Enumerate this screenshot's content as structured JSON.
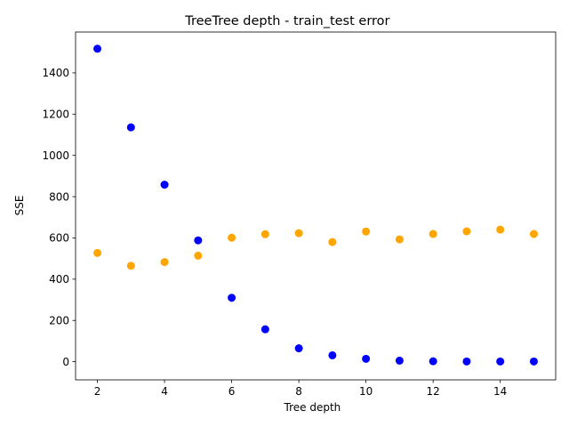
{
  "chart_data": {
    "type": "scatter",
    "title": "TreeTree depth - train_test error",
    "xlabel": "Tree depth",
    "ylabel": "SSE",
    "xlim": [
      1.35,
      15.65
    ],
    "ylim": [
      -88,
      1598
    ],
    "xticks": [
      2,
      4,
      6,
      8,
      10,
      12,
      14
    ],
    "yticks": [
      0,
      200,
      400,
      600,
      800,
      1000,
      1200,
      1400
    ],
    "grid": false,
    "series": [
      {
        "color": "#0000ff",
        "x": [
          2,
          3,
          4,
          5,
          6,
          7,
          8,
          9,
          10,
          11,
          12,
          13,
          14,
          15
        ],
        "y": [
          1517,
          1136,
          858,
          588,
          310,
          157,
          65,
          31,
          14,
          5,
          2,
          1,
          1,
          1
        ]
      },
      {
        "color": "#ffa500",
        "x": [
          2,
          3,
          4,
          5,
          6,
          7,
          8,
          9,
          10,
          11,
          12,
          13,
          14,
          15
        ],
        "y": [
          527,
          465,
          483,
          514,
          601,
          618,
          623,
          580,
          631,
          593,
          619,
          632,
          640,
          619
        ]
      }
    ]
  }
}
